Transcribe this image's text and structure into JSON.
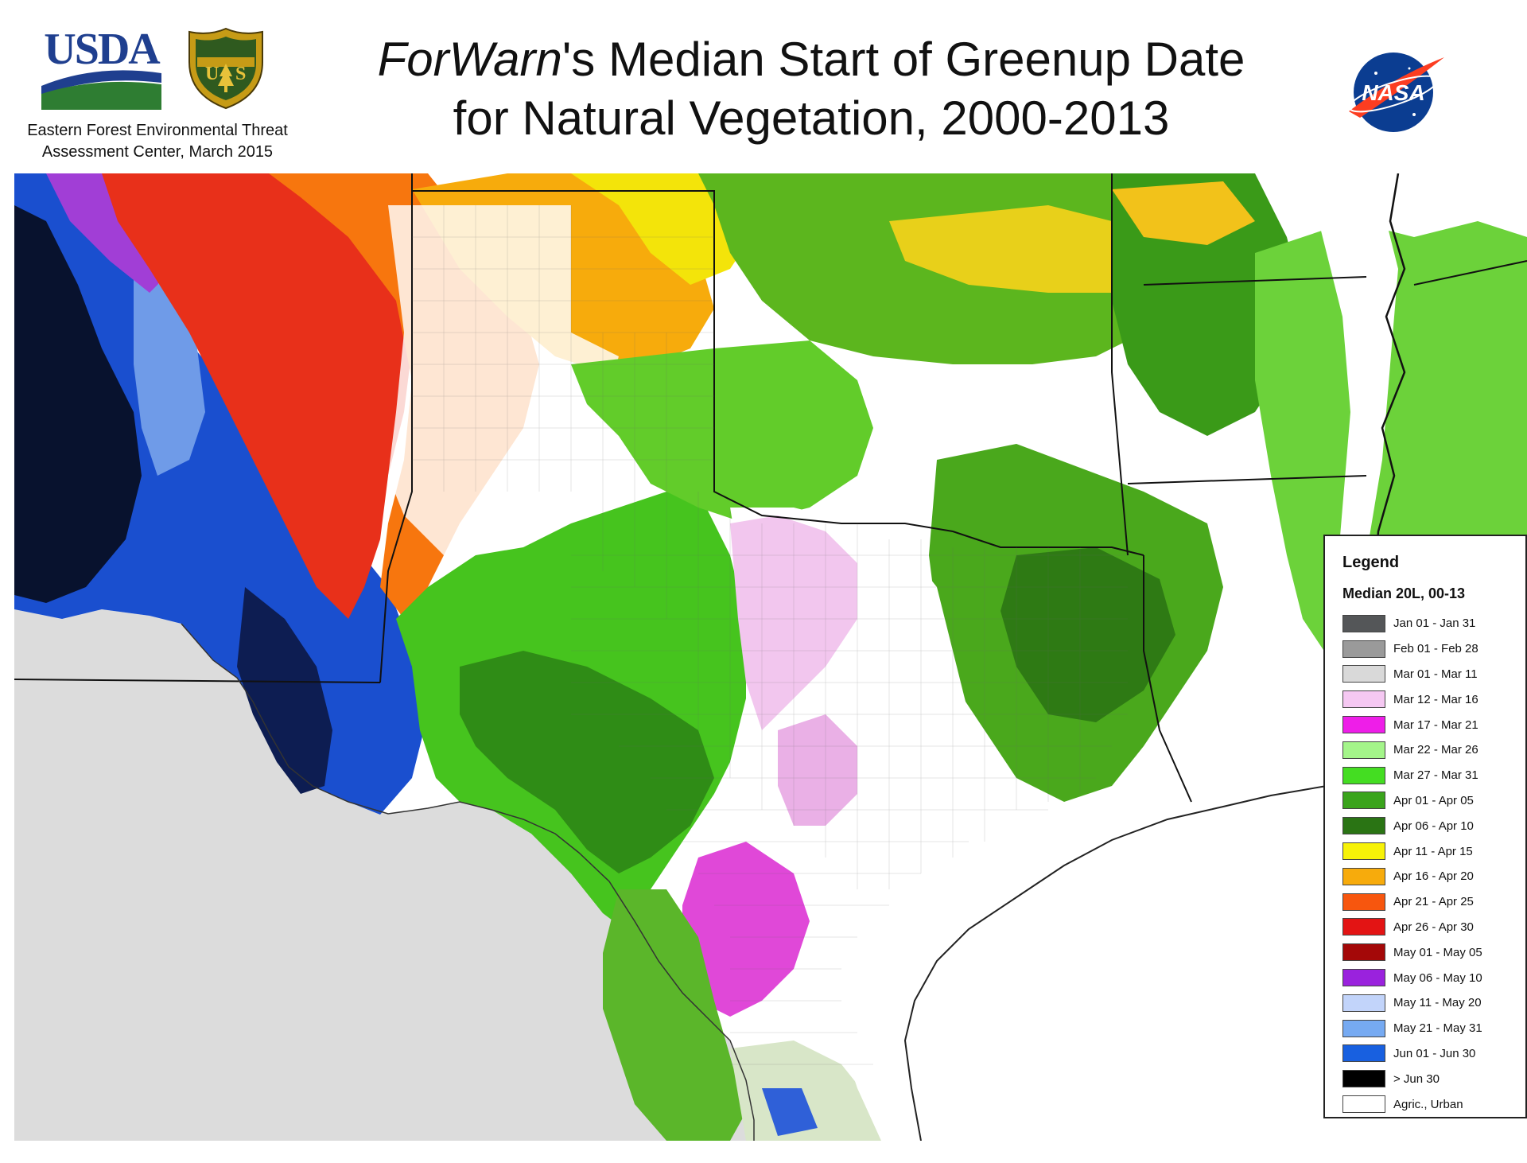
{
  "header": {
    "usda_logo_text": "USDA",
    "forest_service_logo_text": "U S",
    "organization_line1": "Eastern Forest Environmental Threat",
    "organization_line2": "Assessment Center, March 2015",
    "title_brand": "ForWarn",
    "title_rest_line1": "'s Median Start of Greenup Date",
    "title_line2": "for Natural Vegetation, 2000-2013",
    "nasa_logo_text": "NASA"
  },
  "legend": {
    "title": "Legend",
    "subtitle": "Median 20L, 00-13",
    "items": [
      {
        "label": "Jan 01 - Jan 31",
        "color": "#545658"
      },
      {
        "label": "Feb 01 - Feb 28",
        "color": "#9a9a9a"
      },
      {
        "label": "Mar 01 - Mar 11",
        "color": "#d9d9d9"
      },
      {
        "label": "Mar 12 - Mar 16",
        "color": "#f5c8f2"
      },
      {
        "label": "Mar 17 - Mar 21",
        "color": "#ee1ee8"
      },
      {
        "label": "Mar 22 - Mar 26",
        "color": "#a4f58a"
      },
      {
        "label": "Mar 27 - Mar 31",
        "color": "#44dd22"
      },
      {
        "label": "Apr 01 - Apr 05",
        "color": "#3aa41c"
      },
      {
        "label": "Apr 06 - Apr 10",
        "color": "#2a7414"
      },
      {
        "label": "Apr 11 - Apr 15",
        "color": "#f7f208"
      },
      {
        "label": "Apr 16 - Apr 20",
        "color": "#f7ab0c"
      },
      {
        "label": "Apr 21 - Apr 25",
        "color": "#f7560e"
      },
      {
        "label": "Apr 26 - Apr 30",
        "color": "#e31414"
      },
      {
        "label": "May 01 - May 05",
        "color": "#a40808"
      },
      {
        "label": "May 06 - May 10",
        "color": "#9a22dd"
      },
      {
        "label": "May 11 - May 20",
        "color": "#c2d4fa"
      },
      {
        "label": "May 21 - May 31",
        "color": "#76aaf2"
      },
      {
        "label": "Jun 01 - Jun 30",
        "color": "#1860e0"
      },
      {
        "label": "> Jun 30",
        "color": "#000000"
      },
      {
        "label": "Agric., Urban",
        "color": "#ffffff"
      }
    ]
  },
  "map": {
    "background_color": "#dddddd",
    "land_color": "#ffffff",
    "outside_coverage_color": "#dcdcdc"
  }
}
